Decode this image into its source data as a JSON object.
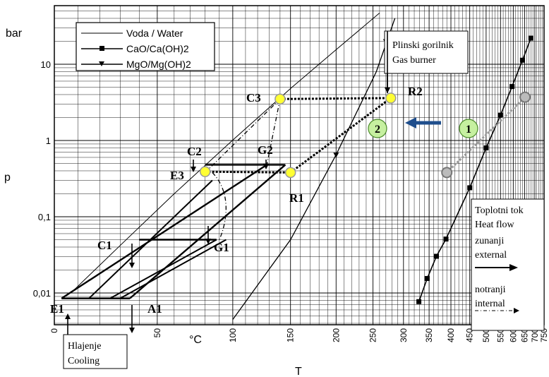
{
  "chart_data": {
    "type": "line",
    "title": "",
    "ylabel": "p",
    "yunit": "bar",
    "xlabel": "T",
    "xunit": "°C",
    "yscale": "log",
    "xscale": "reciprocal",
    "ylim": [
      0.005,
      40
    ],
    "y_ticks": [
      {
        "v": 0.01,
        "label": "0,01"
      },
      {
        "v": 0.1,
        "label": "0,1"
      },
      {
        "v": 1,
        "label": "1"
      },
      {
        "v": 10,
        "label": "10"
      }
    ],
    "x_ticks_upper": [
      "0",
      "50",
      "100",
      "150",
      "200",
      "250",
      "300"
    ],
    "x_ticks_lower": [
      "350",
      "400",
      "450",
      "500",
      "550",
      "600",
      "650",
      "700",
      "750"
    ],
    "grid": true,
    "legend": {
      "placement": "top-left",
      "entries": [
        "Voda / Water",
        "CaO/Ca(OH)2",
        "MgO/Mg(OH)2"
      ]
    },
    "series": [
      {
        "name": "Voda / Water",
        "marker": "none",
        "points": [
          {
            "T": 7,
            "p": 0.01
          },
          {
            "T": 30,
            "p": 0.042
          },
          {
            "T": 60,
            "p": 0.2
          },
          {
            "T": 100,
            "p": 1.013
          },
          {
            "T": 150,
            "p": 4.8
          },
          {
            "T": 200,
            "p": 15.5
          },
          {
            "T": 260,
            "p": 47
          }
        ]
      },
      {
        "name": "CaO/Ca(OH)2",
        "marker": "square",
        "points": [
          {
            "T": 329,
            "p": 0.0077
          },
          {
            "T": 346,
            "p": 0.0155
          },
          {
            "T": 366,
            "p": 0.0303
          },
          {
            "T": 388,
            "p": 0.051
          },
          {
            "T": 450,
            "p": 0.24
          },
          {
            "T": 500,
            "p": 0.8
          },
          {
            "T": 550,
            "p": 2.15
          },
          {
            "T": 595,
            "p": 5.1
          },
          {
            "T": 640,
            "p": 11.3
          },
          {
            "T": 680,
            "p": 22
          }
        ]
      },
      {
        "name": "MgO/Mg(OH)2",
        "marker": "triangle-down",
        "points": [
          {
            "T": 100,
            "p": 0.0045
          },
          {
            "T": 150,
            "p": 0.05
          },
          {
            "T": 200,
            "p": 0.65
          },
          {
            "T": 255,
            "p": 8
          },
          {
            "T": 285,
            "p": 40
          }
        ]
      }
    ],
    "state_points": [
      {
        "label": "C3",
        "T": 140,
        "p": 3.5
      },
      {
        "label": "R2",
        "T": 278,
        "p": 3.6
      },
      {
        "label": "C2",
        "T": 80,
        "p": 0.4
      },
      {
        "label": "E3",
        "T": 80,
        "p": 0.38
      },
      {
        "label": "G2",
        "T": 128,
        "p": 0.48
      },
      {
        "label": "R1",
        "T": 150,
        "p": 0.38
      },
      {
        "label": "C1",
        "T": 40,
        "p": 0.05
      },
      {
        "label": "G1",
        "T": 88,
        "p": 0.05
      },
      {
        "label": "E1",
        "T": 3,
        "p": 0.0085
      },
      {
        "label": "A1",
        "T": 35,
        "p": 0.0085
      }
    ],
    "cycle_markers": [
      "1",
      "2"
    ],
    "annotations": {
      "burner": [
        "Plinski gorilnik",
        "Gas burner"
      ],
      "cooling": [
        "Hlajenje",
        "Cooling"
      ],
      "heat_flow": [
        "Toplotni tok",
        "Heat flow",
        "zunanji",
        "external",
        "notranji",
        "internal"
      ]
    }
  }
}
